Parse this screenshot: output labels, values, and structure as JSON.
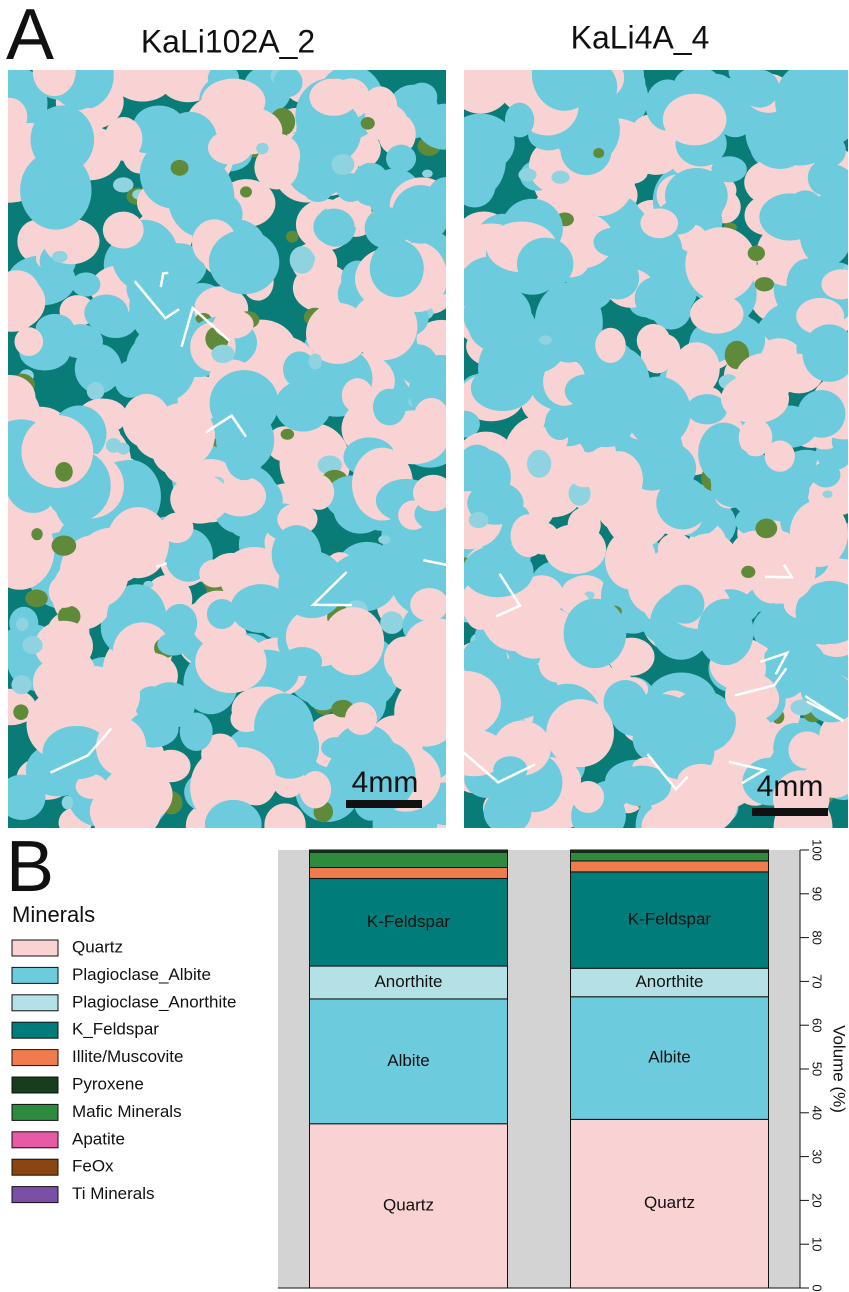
{
  "panel_a": {
    "letter": "A",
    "maps": [
      {
        "title": "KaLi102A_2",
        "scale_bar": "4mm"
      },
      {
        "title": "KaLi4A_4",
        "scale_bar": "4mm"
      }
    ]
  },
  "panel_b": {
    "letter": "B"
  },
  "legend": {
    "title": "Minerals",
    "items": [
      {
        "label": "Quartz",
        "color": "#f9d3d3"
      },
      {
        "label": "Plagioclase_Albite",
        "color": "#6ccbdd"
      },
      {
        "label": "Plagioclase_Anorthite",
        "color": "#b3e1e6"
      },
      {
        "label": "K_Feldspar",
        "color": "#007d7a"
      },
      {
        "label": "Illite/Muscovite",
        "color": "#f07c4d"
      },
      {
        "label": "Pyroxene",
        "color": "#163d1d"
      },
      {
        "label": "Mafic Minerals",
        "color": "#2e8b3e"
      },
      {
        "label": "Apatite",
        "color": "#e75aa6"
      },
      {
        "label": "FeOx",
        "color": "#8b4512"
      },
      {
        "label": "Ti Minerals",
        "color": "#7c4fa6"
      }
    ]
  },
  "chart_data": {
    "type": "stacked_bar",
    "ylabel": "Volume (%)",
    "categories": [
      null,
      null
    ],
    "ylim": [
      0,
      100
    ],
    "yticks": [
      0,
      10,
      20,
      30,
      40,
      50,
      60,
      70,
      80,
      90,
      100
    ],
    "series": [
      {
        "name": "Quartz",
        "color": "#f9d3d3",
        "values": [
          37.5,
          38.5
        ]
      },
      {
        "name": "Albite",
        "color": "#6ccbdd",
        "values": [
          28.5,
          28
        ]
      },
      {
        "name": "Anorthite",
        "color": "#b3e1e6",
        "values": [
          7.5,
          6.5
        ]
      },
      {
        "name": "K-Feldspar",
        "color": "#007d7a",
        "values": [
          20,
          22
        ]
      },
      {
        "color": "#f07c4d",
        "values": [
          2.5,
          2.5
        ]
      },
      {
        "color": "#2e8b3e",
        "values": [
          3.5,
          2
        ]
      },
      {
        "color": "#163d1d",
        "values": [
          0.5,
          0.5
        ]
      }
    ]
  }
}
